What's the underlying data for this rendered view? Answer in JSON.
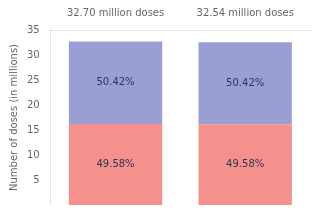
{
  "chart_data": {
    "type": "bar",
    "stacked": true,
    "categories": [
      "32.70 million doses",
      "32.54 million doses"
    ],
    "series": [
      {
        "color": "#F4918C",
        "values": [
          16.21266,
          16.133332
        ],
        "annotations": [
          "49.58%",
          "49.58%"
        ]
      },
      {
        "color": "#9B9ED4",
        "values": [
          16.48734,
          16.406668
        ],
        "annotations": [
          "50.42%",
          "50.42%"
        ]
      }
    ],
    "ylabel": "Number of doses (in millions)",
    "ylim": [
      0,
      35
    ],
    "yticks": [
      5,
      10,
      15,
      20,
      25,
      30,
      35
    ],
    "grid": false
  }
}
